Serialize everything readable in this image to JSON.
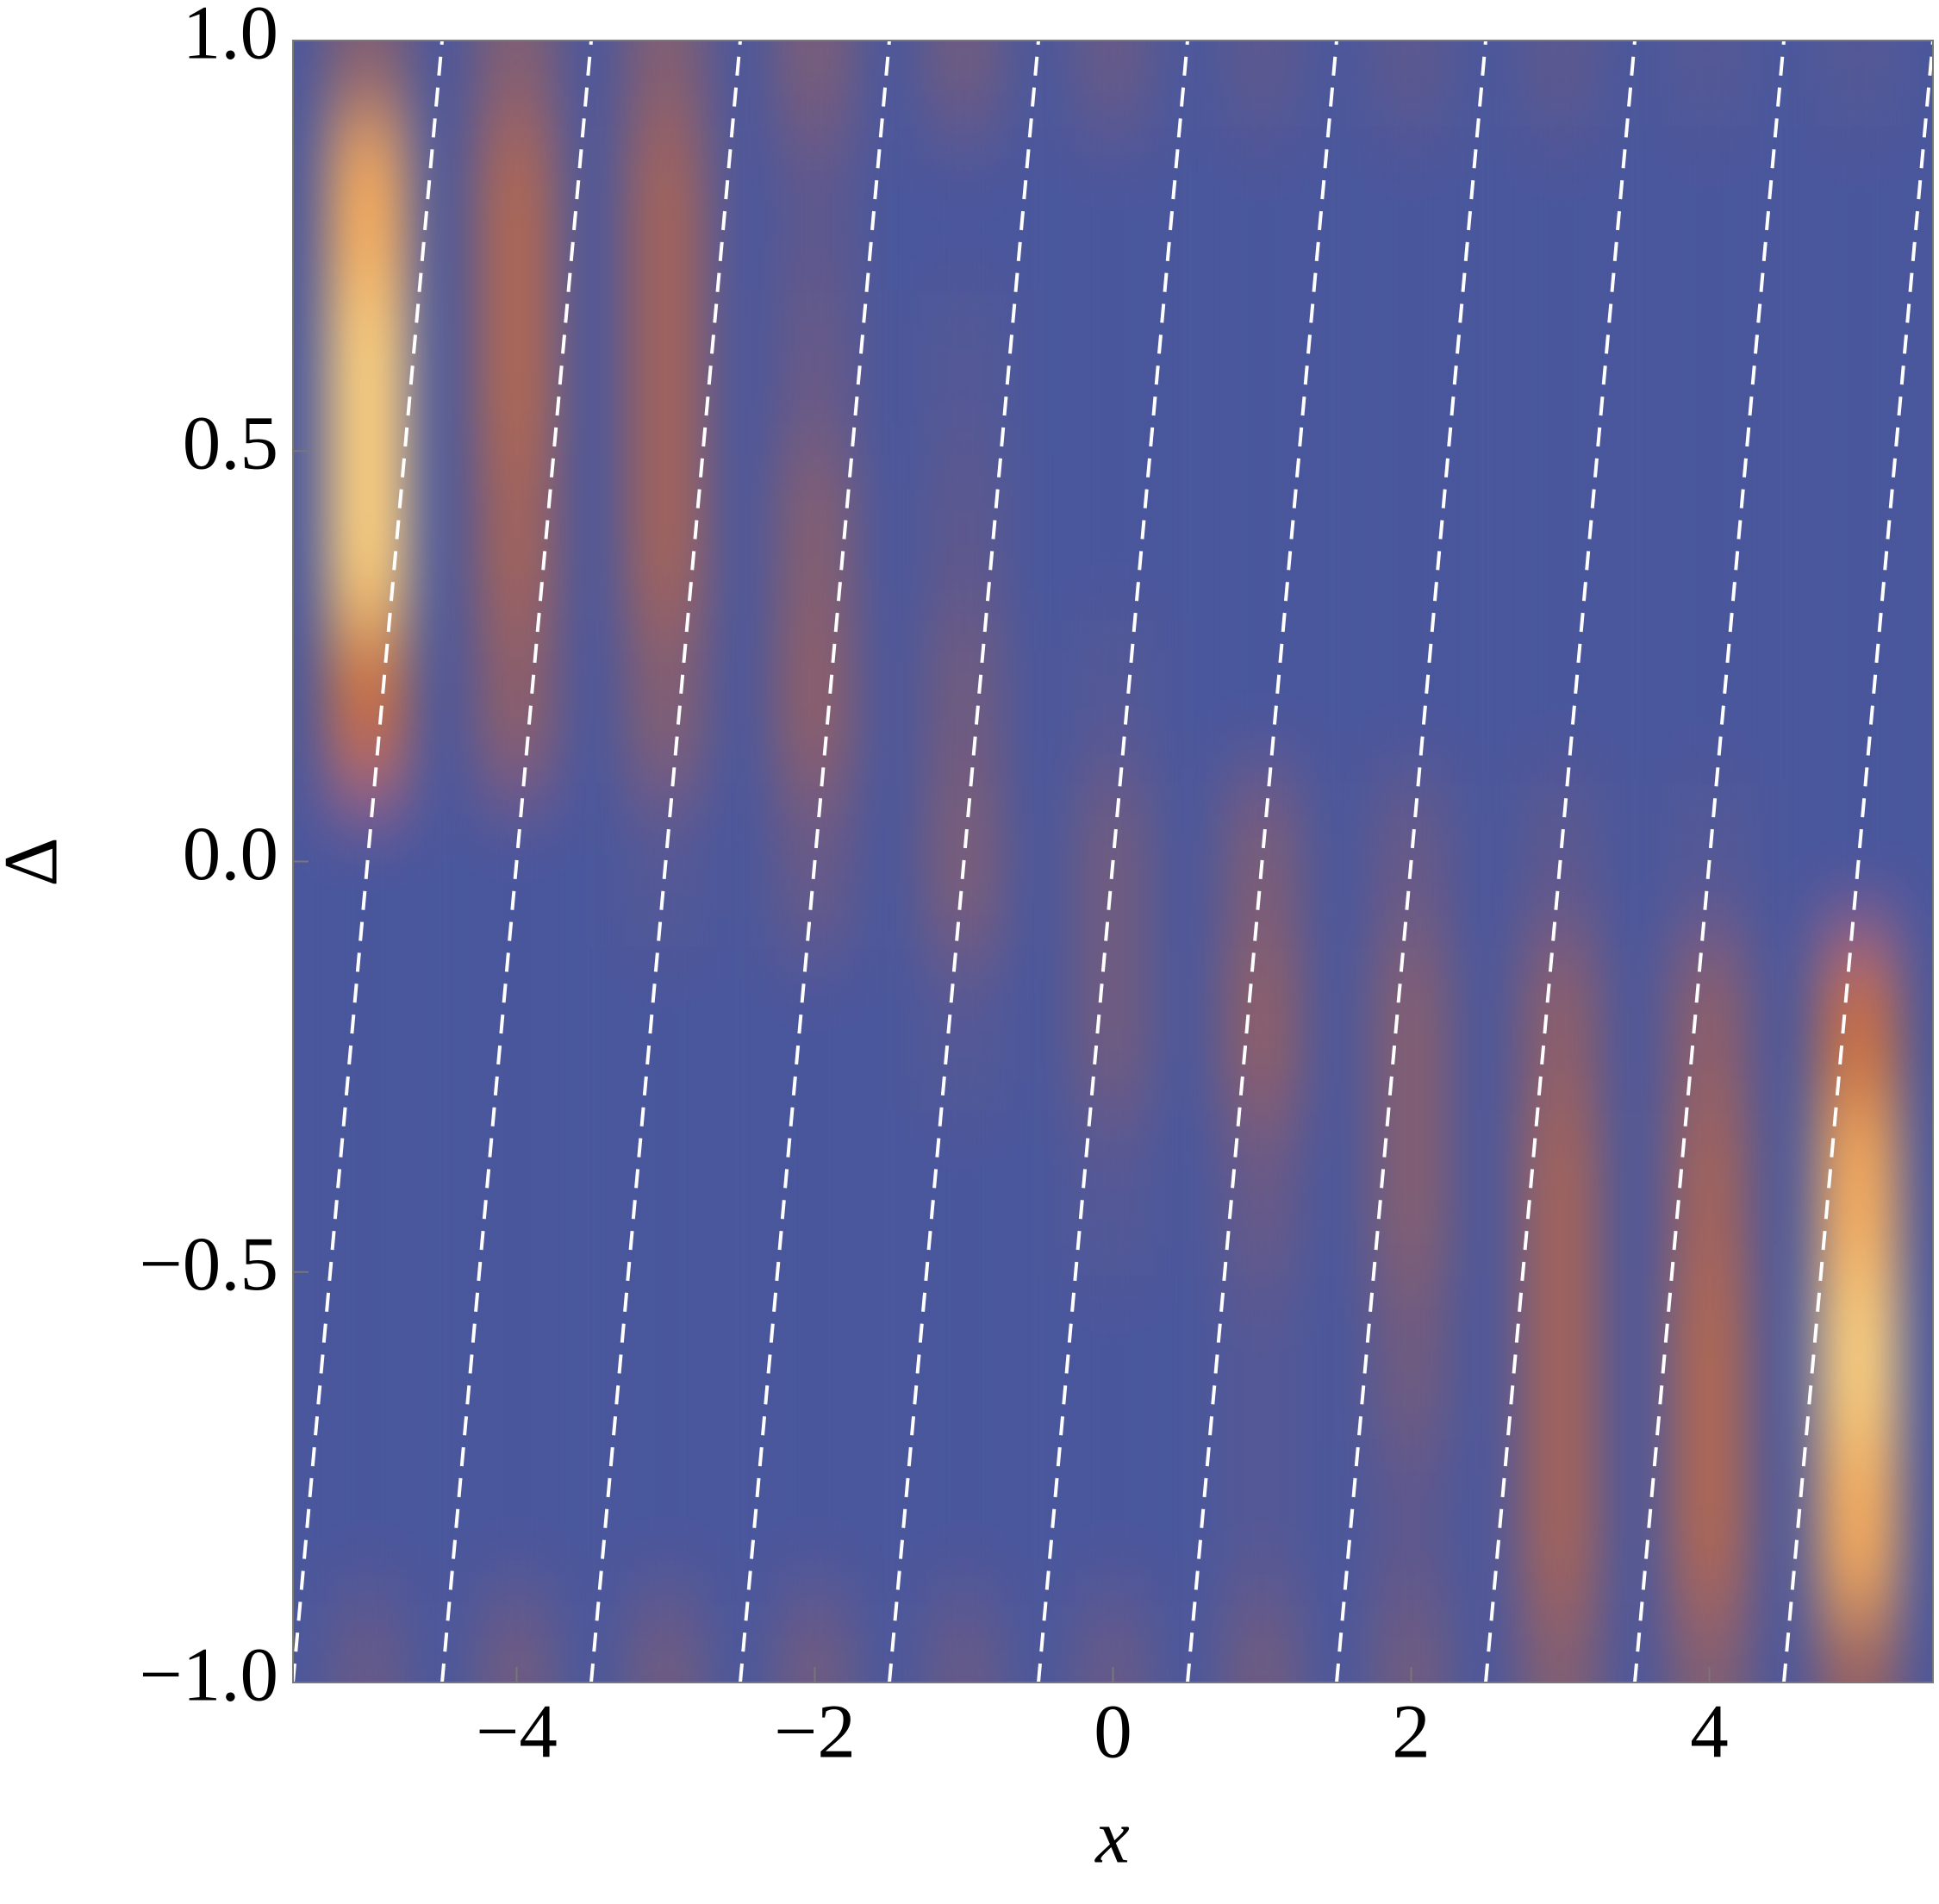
{
  "chart_data": {
    "type": "heatmap",
    "xlabel": "x",
    "ylabel": "Δ",
    "xlim": [
      -5.5,
      5.5
    ],
    "ylim": [
      -1,
      1
    ],
    "xticks": [
      {
        "value": -4,
        "label": "−4"
      },
      {
        "value": -2,
        "label": "−2"
      },
      0,
      2,
      4
    ],
    "yticks": [
      {
        "value": -1,
        "label": "−1.0"
      },
      {
        "value": -0.5,
        "label": "−0.5"
      },
      {
        "value": 0,
        "label": "0.0"
      },
      {
        "value": 0.5,
        "label": "0.5"
      },
      {
        "value": 1,
        "label": "1.0"
      }
    ],
    "x": [
      -5,
      -4,
      -3,
      -2,
      -1,
      0,
      1,
      2,
      3,
      4,
      5
    ],
    "y": [
      -1,
      -0.8,
      -0.6,
      -0.4,
      -0.2,
      0,
      0.2,
      0.4,
      0.6,
      0.8,
      1
    ],
    "z": [
      [
        0.15,
        0.2,
        0.2,
        0.2,
        0.15,
        0.15,
        0.2,
        0.2,
        0.3,
        0.3,
        0.4
      ],
      [
        0,
        0,
        0,
        0,
        0,
        0,
        0.05,
        0.1,
        0.45,
        0.5,
        0.9
      ],
      [
        0,
        0,
        0,
        0,
        0,
        0,
        0.05,
        0.2,
        0.45,
        0.5,
        1.0
      ],
      [
        0,
        0,
        0,
        0,
        0,
        0.05,
        0.15,
        0.3,
        0.45,
        0.45,
        0.9
      ],
      [
        0,
        0,
        0,
        0,
        0.05,
        0.2,
        0.35,
        0.3,
        0.35,
        0.35,
        0.6
      ],
      [
        0,
        0,
        0.05,
        0.15,
        0.25,
        0.2,
        0.25,
        0.15,
        0.1,
        0.05,
        0
      ],
      [
        0.6,
        0.35,
        0.3,
        0.35,
        0.2,
        0.05,
        0,
        0,
        0,
        0,
        0
      ],
      [
        1.0,
        0.45,
        0.45,
        0.3,
        0.1,
        0,
        0,
        0,
        0,
        0,
        0
      ],
      [
        1.0,
        0.5,
        0.45,
        0.15,
        0.05,
        0,
        0,
        0,
        0,
        0,
        0
      ],
      [
        0.9,
        0.5,
        0.45,
        0.1,
        0,
        0,
        0,
        0,
        0,
        0,
        0
      ],
      [
        0.3,
        0.3,
        0.3,
        0.25,
        0.2,
        0.15,
        0.1,
        0.1,
        0.1,
        0.05,
        0.05
      ]
    ],
    "contour_color": "#ffffff",
    "contours": [
      {
        "x": [
          -5.5,
          -4.5
        ],
        "y": [
          -1,
          1
        ]
      },
      {
        "x": [
          -4.5,
          -3.5
        ],
        "y": [
          -1,
          1
        ]
      },
      {
        "x": [
          -3.5,
          -2.5
        ],
        "y": [
          -1,
          1
        ]
      },
      {
        "x": [
          -2.5,
          -1.5
        ],
        "y": [
          -1,
          1
        ]
      },
      {
        "x": [
          -1.5,
          -0.5
        ],
        "y": [
          -1,
          1
        ]
      },
      {
        "x": [
          -0.5,
          0.5
        ],
        "y": [
          -1,
          1
        ]
      },
      {
        "x": [
          0.5,
          1.5
        ],
        "y": [
          -1,
          1
        ]
      },
      {
        "x": [
          1.5,
          2.5
        ],
        "y": [
          -1,
          1
        ]
      },
      {
        "x": [
          2.5,
          3.5
        ],
        "y": [
          -1,
          1
        ]
      },
      {
        "x": [
          3.5,
          4.5
        ],
        "y": [
          -1,
          1
        ]
      },
      {
        "x": [
          4.5,
          5.5
        ],
        "y": [
          -1,
          1
        ]
      }
    ]
  }
}
